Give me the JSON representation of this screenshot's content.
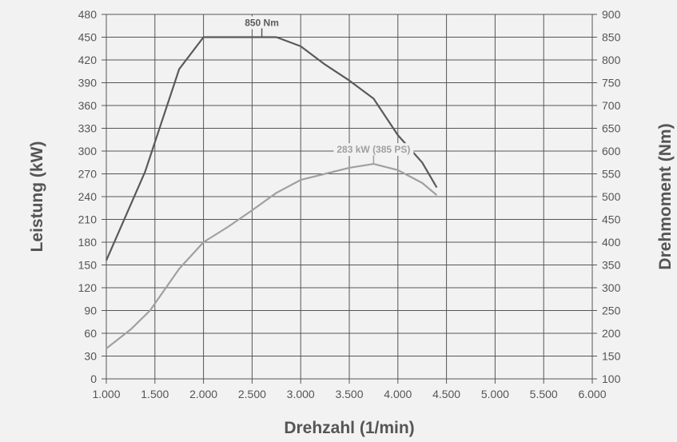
{
  "chart_data": {
    "type": "line",
    "xlabel": "Drehzahl (1/min)",
    "ylabel_left": "Leistung (kW)",
    "ylabel_right": "Drehmoment (Nm)",
    "x_ticks": [
      "1.000",
      "1.500",
      "2.000",
      "2.500",
      "3.000",
      "3.500",
      "4.000",
      "4.500",
      "5.000",
      "5.500",
      "6.000"
    ],
    "y_left_ticks": [
      "0",
      "30",
      "60",
      "90",
      "120",
      "150",
      "180",
      "210",
      "240",
      "270",
      "300",
      "330",
      "360",
      "390",
      "420",
      "450",
      "480"
    ],
    "y_right_ticks": [
      "100",
      "150",
      "200",
      "250",
      "300",
      "350",
      "400",
      "450",
      "500",
      "550",
      "600",
      "650",
      "700",
      "750",
      "800",
      "850",
      "900"
    ],
    "xlim": [
      1000,
      6000
    ],
    "ylim_left": [
      0,
      480
    ],
    "ylim_right": [
      100,
      900
    ],
    "grid": true,
    "series": [
      {
        "axis": "right",
        "color": "#5a5a5a",
        "x": [
          1000,
          1400,
          1750,
          2000,
          2250,
          2500,
          2750,
          3000,
          3250,
          3500,
          3750,
          4000,
          4250,
          4400
        ],
        "values": [
          360,
          555,
          780,
          850,
          850,
          850,
          850,
          830,
          790,
          755,
          715,
          635,
          575,
          520
        ]
      },
      {
        "axis": "left",
        "color": "#a0a0a0",
        "x": [
          1000,
          1250,
          1450,
          1750,
          2000,
          2250,
          2500,
          2750,
          3000,
          3250,
          3500,
          3750,
          4000,
          4250,
          4400
        ],
        "values": [
          40,
          65,
          90,
          145,
          180,
          200,
          222,
          245,
          262,
          270,
          278,
          283,
          275,
          258,
          242
        ]
      }
    ],
    "annotations": [
      {
        "text": "850 Nm",
        "x": 2600,
        "value": 850,
        "axis": "right",
        "color": "#5a5a5a"
      },
      {
        "text": "283 kW (385 PS)",
        "x": 3750,
        "value": 283,
        "axis": "left",
        "color": "#a0a0a0"
      }
    ]
  }
}
